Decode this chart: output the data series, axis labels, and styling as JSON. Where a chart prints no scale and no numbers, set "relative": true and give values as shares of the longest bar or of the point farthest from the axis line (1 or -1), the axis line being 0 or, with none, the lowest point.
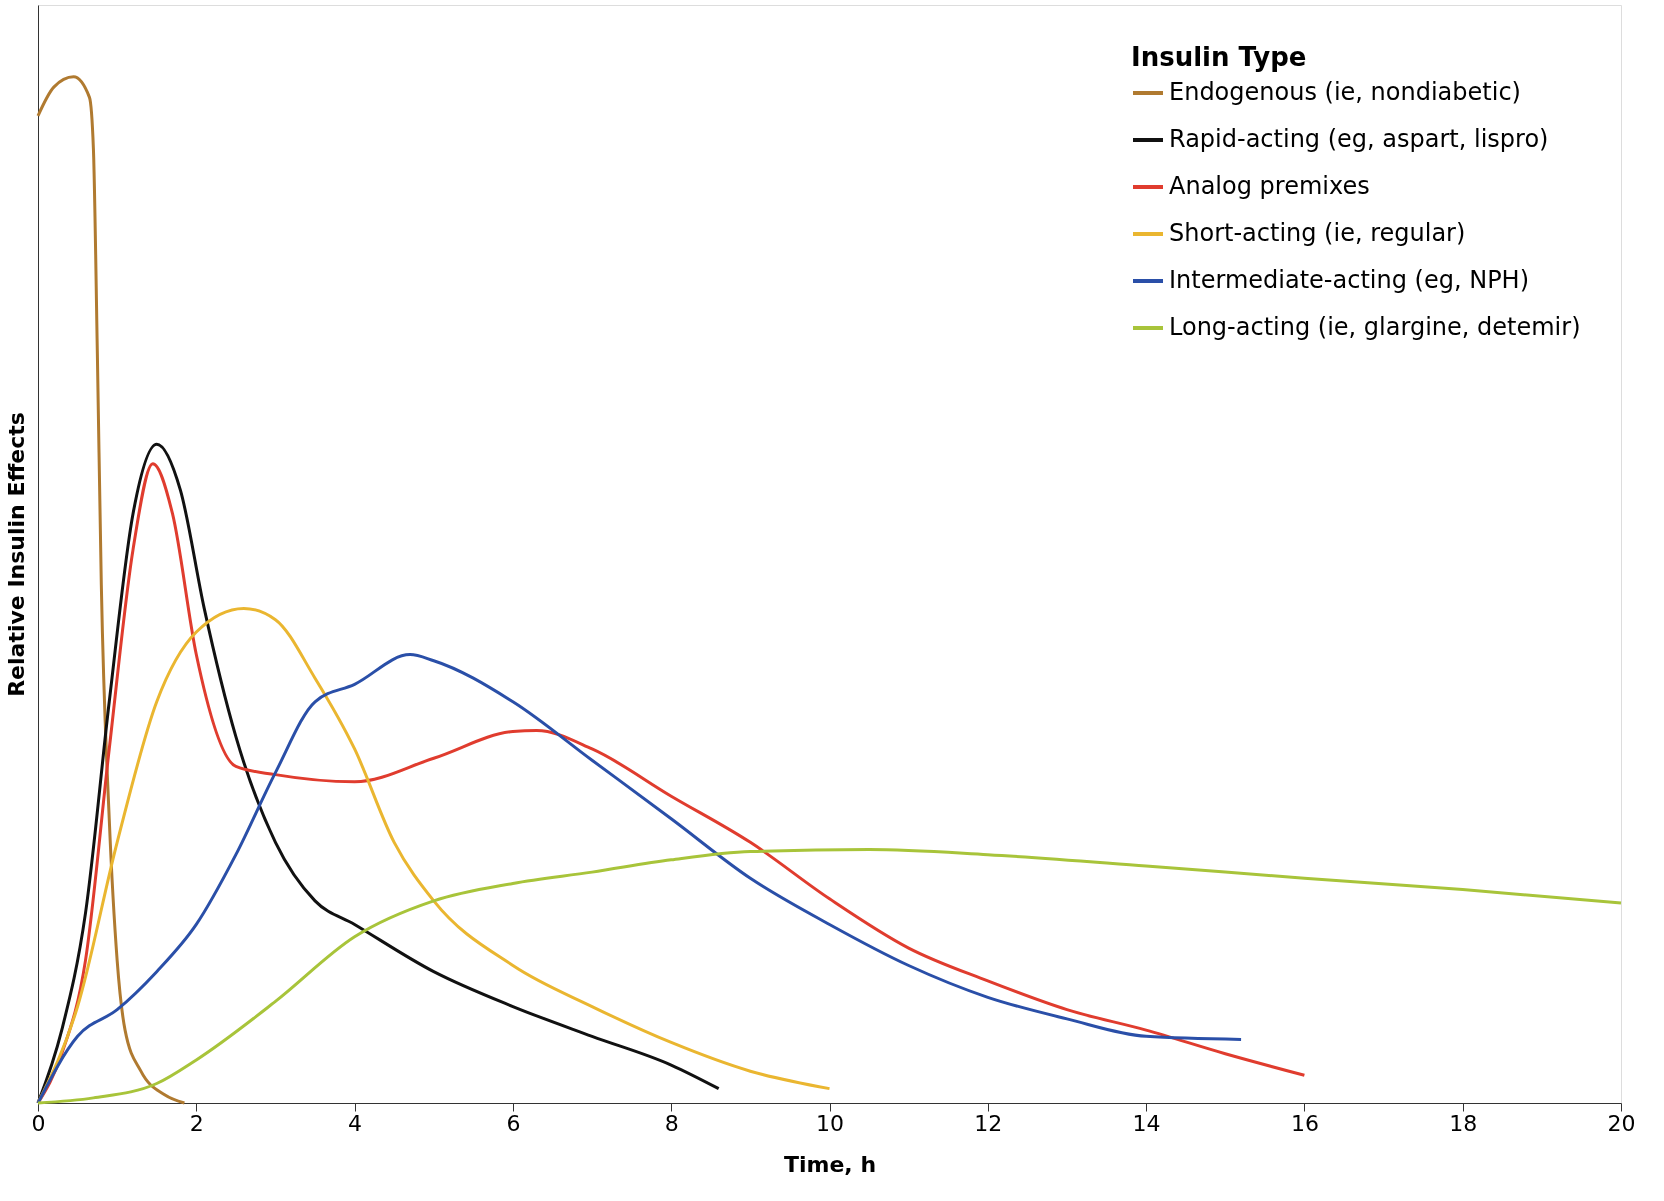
{
  "chart_data": {
    "type": "line",
    "relative": true,
    "xlabel": "Time, h",
    "ylabel": "Relative Insulin Effects",
    "legend_title": "Insulin Type",
    "legend": "top right",
    "grid": false,
    "marker": "none",
    "line_style": "solid",
    "xlim": [
      0,
      20
    ],
    "xticks": [
      0,
      2,
      4,
      6,
      8,
      10,
      12,
      14,
      16,
      18,
      20
    ],
    "series": [
      {
        "name": "Endogenous (ie, nondiabetic)",
        "color": "#b07a30",
        "x": [
          0,
          0.2,
          0.45,
          0.65,
          0.7,
          0.75,
          0.8,
          0.9,
          1.0,
          1.1,
          1.3,
          1.6,
          1.85
        ],
        "values": [
          0.962,
          0.99,
          1.0,
          0.98,
          0.93,
          0.73,
          0.505,
          0.277,
          0.139,
          0.071,
          0.031,
          0.008,
          0
        ]
      },
      {
        "name": "Rapid-acting (eg, aspart, lispro)",
        "color": "#111111",
        "x": [
          0,
          0.3,
          0.6,
          0.9,
          1.2,
          1.5,
          1.8,
          2.1,
          2.5,
          3,
          3.5,
          4,
          5,
          6,
          7,
          8,
          8.6
        ],
        "values": [
          0,
          0.071,
          0.185,
          0.391,
          0.574,
          0.642,
          0.597,
          0.482,
          0.357,
          0.254,
          0.197,
          0.174,
          0.128,
          0.094,
          0.065,
          0.037,
          0.014
        ]
      },
      {
        "name": "Analog premixes",
        "color": "#e03c2e",
        "x": [
          0,
          0.3,
          0.6,
          0.9,
          1.2,
          1.45,
          1.7,
          2.0,
          2.5,
          3,
          4,
          5,
          6,
          6.3,
          7,
          8,
          9,
          10,
          11,
          12,
          13,
          14,
          15,
          16
        ],
        "values": [
          0,
          0.048,
          0.139,
          0.345,
          0.539,
          0.623,
          0.574,
          0.437,
          0.328,
          0.32,
          0.313,
          0.336,
          0.362,
          0.363,
          0.345,
          0.299,
          0.254,
          0.199,
          0.151,
          0.119,
          0.091,
          0.071,
          0.048,
          0.027
        ]
      },
      {
        "name": "Short-acting (ie, regular)",
        "color": "#eab630",
        "x": [
          0,
          0.5,
          1,
          1.5,
          2,
          2.6,
          3,
          3.5,
          4,
          4.5,
          5,
          6,
          7,
          8,
          9,
          10
        ],
        "values": [
          0,
          0.094,
          0.254,
          0.391,
          0.459,
          0.482,
          0.471,
          0.414,
          0.345,
          0.254,
          0.197,
          0.134,
          0.094,
          0.059,
          0.031,
          0.014
        ]
      },
      {
        "name": "Intermediate-acting (eg, NPH)",
        "color": "#2a4fa8",
        "x": [
          0,
          0.5,
          1,
          1.5,
          2,
          2.5,
          3,
          3.5,
          4,
          4.7,
          5,
          6,
          7,
          8,
          9,
          10,
          11,
          12,
          13,
          14,
          15.2
        ],
        "values": [
          0,
          0.065,
          0.091,
          0.128,
          0.174,
          0.242,
          0.322,
          0.391,
          0.408,
          0.437,
          0.431,
          0.391,
          0.334,
          0.277,
          0.219,
          0.174,
          0.134,
          0.103,
          0.082,
          0.065,
          0.062
        ]
      },
      {
        "name": "Long-acting (ie, glargine, detemir)",
        "color": "#a8c43a",
        "x": [
          0,
          0.7,
          1.5,
          2,
          3,
          4,
          5,
          6,
          7,
          8,
          9,
          10.5,
          12,
          14,
          16,
          18,
          20
        ],
        "values": [
          0,
          0.005,
          0.019,
          0.042,
          0.099,
          0.162,
          0.197,
          0.214,
          0.225,
          0.237,
          0.245,
          0.247,
          0.242,
          0.231,
          0.219,
          0.208,
          0.195
        ]
      }
    ]
  }
}
